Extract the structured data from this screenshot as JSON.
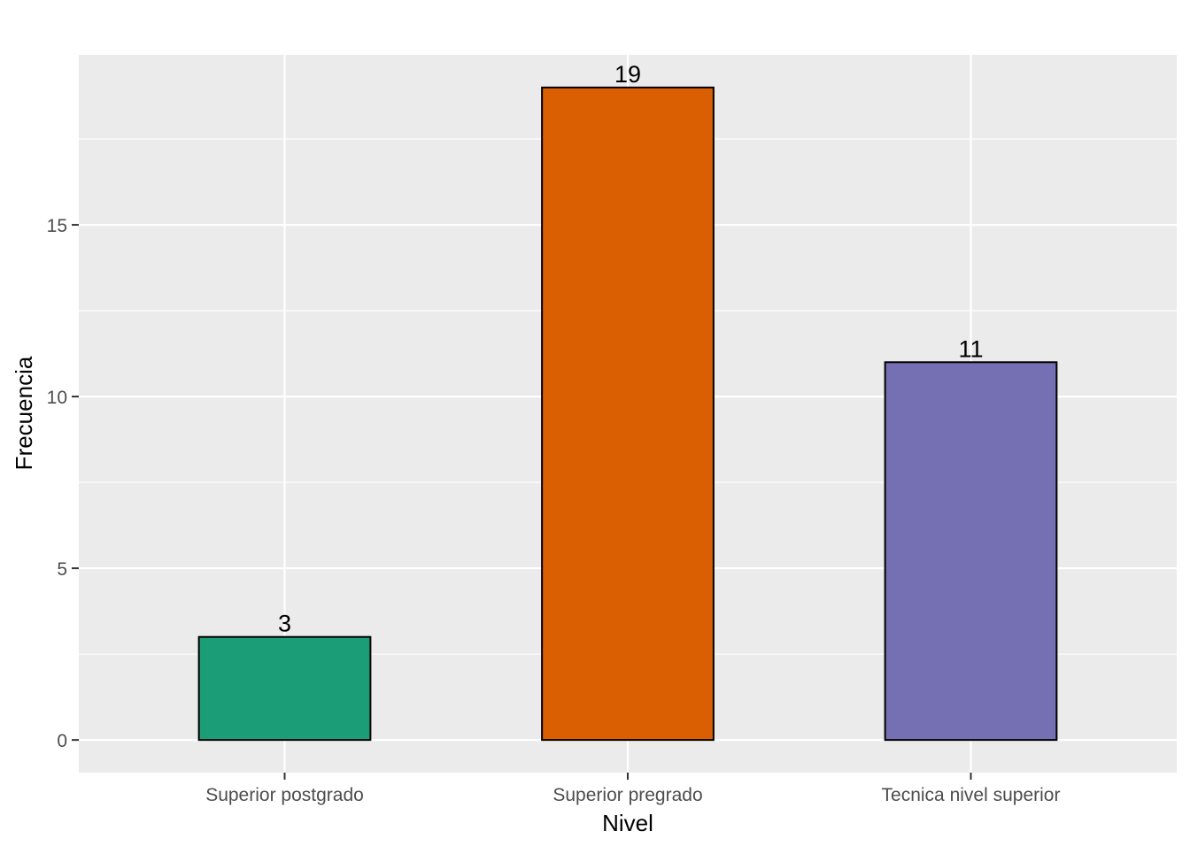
{
  "chart_data": {
    "type": "bar",
    "categories": [
      "Superior postgrado",
      "Superior pregrado",
      "Tecnica nivel superior"
    ],
    "values": [
      3,
      19,
      11
    ],
    "data_labels": [
      "3",
      "19",
      "11"
    ],
    "colors": [
      "#1B9E77",
      "#D95F02",
      "#7570B3"
    ],
    "title": "",
    "xlabel": "Nivel",
    "ylabel": "Frecuencia",
    "ylim": [
      -0.95,
      19.95
    ],
    "yticks": [
      0,
      5,
      10,
      15
    ],
    "ytick_labels": [
      "0",
      "5",
      "10",
      "15"
    ],
    "grid": true,
    "panel_background": "#EBEBEB",
    "bar_outline": "#000000",
    "legend": "none"
  }
}
